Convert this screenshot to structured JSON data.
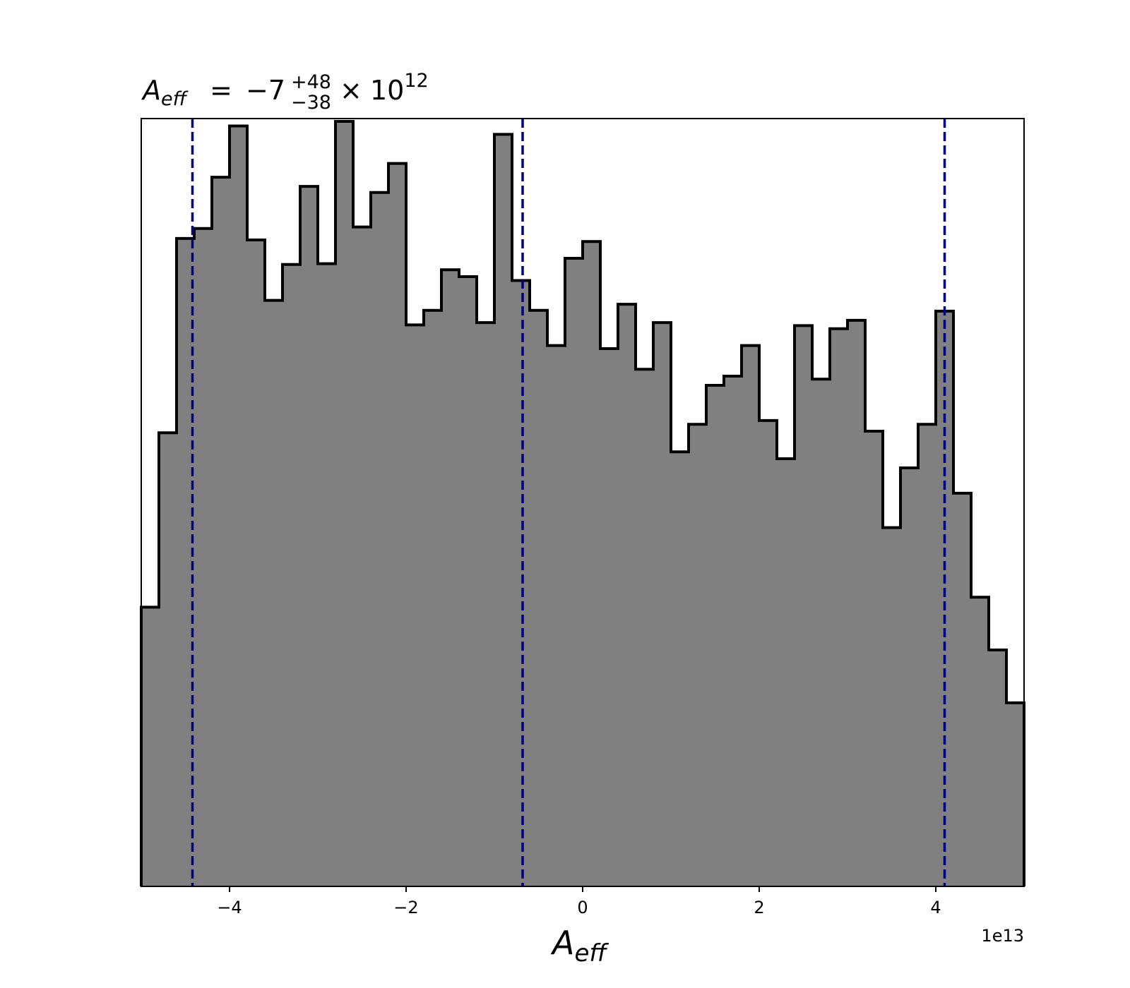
{
  "chart_data": {
    "type": "bar",
    "title": {
      "symbol": "A",
      "subscript": "eff",
      "equals": "=",
      "value": "−7",
      "plus": "+48",
      "minus": "−38",
      "times": "×",
      "base": "10",
      "exponent": "12"
    },
    "xlabel": {
      "symbol": "A",
      "subscript": "eff"
    },
    "ylabel": "",
    "x_offset_label": "1e13",
    "xlim": [
      -5,
      5
    ],
    "ylim": [
      0,
      1
    ],
    "grid": false,
    "bin_edges": [
      -5.0,
      -4.8,
      -4.6,
      -4.4,
      -4.2,
      -4.0,
      -3.8,
      -3.6,
      -3.4,
      -3.2,
      -3.0,
      -2.8,
      -2.6,
      -2.4,
      -2.2,
      -2.0,
      -1.8,
      -1.6,
      -1.4,
      -1.2,
      -1.0,
      -0.8,
      -0.6,
      -0.4,
      -0.2,
      0.0,
      0.2,
      0.4,
      0.6,
      0.8,
      1.0,
      1.2,
      1.4,
      1.6,
      1.8,
      2.0,
      2.2,
      2.4,
      2.6,
      2.8,
      3.0,
      3.2,
      3.4,
      3.6,
      3.8,
      4.0,
      4.2,
      4.4,
      4.6,
      4.8,
      5.0
    ],
    "values": [
      0.365,
      0.593,
      0.847,
      0.86,
      0.927,
      0.994,
      0.845,
      0.766,
      0.813,
      0.915,
      0.814,
      1.0,
      0.862,
      0.907,
      0.945,
      0.734,
      0.753,
      0.806,
      0.797,
      0.737,
      0.983,
      0.792,
      0.753,
      0.707,
      0.821,
      0.843,
      0.703,
      0.761,
      0.676,
      0.737,
      0.568,
      0.604,
      0.655,
      0.667,
      0.707,
      0.609,
      0.559,
      0.733,
      0.663,
      0.729,
      0.74,
      0.595,
      0.469,
      0.547,
      0.604,
      0.752,
      0.514,
      0.378,
      0.309,
      0.24
    ],
    "vlines": [
      -4.42,
      -0.68,
      4.1
    ],
    "xticks": [
      {
        "value": -4,
        "label": "−4"
      },
      {
        "value": -2,
        "label": "−2"
      },
      {
        "value": 0,
        "label": "0"
      },
      {
        "value": 2,
        "label": "2"
      },
      {
        "value": 4,
        "label": "4"
      }
    ],
    "colors": {
      "fill": "#808080",
      "edge": "#000000",
      "vline": "#000080"
    }
  }
}
